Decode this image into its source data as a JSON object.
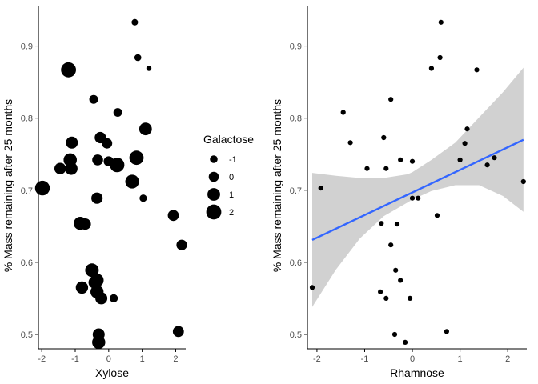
{
  "chart_data": [
    {
      "type": "scatter",
      "xlabel": "Xylose",
      "ylabel": "% Mass remaining after 25 months",
      "xlim": [
        -2.1,
        2.3
      ],
      "ylim": [
        0.48,
        0.955
      ],
      "xticks": [
        -2,
        -1,
        0,
        1,
        2
      ],
      "yticks": [
        0.5,
        0.6,
        0.7,
        0.8,
        0.9
      ],
      "grid": false,
      "size_variable": "Galactose",
      "points": [
        {
          "x": 0.78,
          "y": 0.933,
          "size": -1.5
        },
        {
          "x": 0.87,
          "y": 0.884,
          "size": -1.3
        },
        {
          "x": 1.2,
          "y": 0.869,
          "size": -2.0
        },
        {
          "x": -1.2,
          "y": 0.867,
          "size": 2.0
        },
        {
          "x": -0.45,
          "y": 0.826,
          "size": -0.5
        },
        {
          "x": 0.27,
          "y": 0.808,
          "size": -0.6
        },
        {
          "x": 1.1,
          "y": 0.785,
          "size": 1.0
        },
        {
          "x": -0.25,
          "y": 0.773,
          "size": 0.5
        },
        {
          "x": -1.1,
          "y": 0.766,
          "size": 0.8
        },
        {
          "x": -0.05,
          "y": 0.765,
          "size": 0.1
        },
        {
          "x": 0.83,
          "y": 0.745,
          "size": 1.7
        },
        {
          "x": -1.15,
          "y": 0.742,
          "size": 1.3
        },
        {
          "x": -0.33,
          "y": 0.742,
          "size": 0.3
        },
        {
          "x": 0.0,
          "y": 0.74,
          "size": 0.0
        },
        {
          "x": 0.25,
          "y": 0.735,
          "size": 1.8
        },
        {
          "x": -1.45,
          "y": 0.73,
          "size": 0.6
        },
        {
          "x": -1.12,
          "y": 0.73,
          "size": 1.0
        },
        {
          "x": 0.7,
          "y": 0.712,
          "size": 1.5
        },
        {
          "x": -1.98,
          "y": 0.703,
          "size": 1.9
        },
        {
          "x": -0.35,
          "y": 0.689,
          "size": 0.5
        },
        {
          "x": 1.03,
          "y": 0.689,
          "size": -1.1
        },
        {
          "x": 1.93,
          "y": 0.665,
          "size": 0.4
        },
        {
          "x": -0.85,
          "y": 0.654,
          "size": 1.2
        },
        {
          "x": -0.7,
          "y": 0.653,
          "size": 0.5
        },
        {
          "x": 2.18,
          "y": 0.624,
          "size": 0.2
        },
        {
          "x": -0.5,
          "y": 0.589,
          "size": 1.4
        },
        {
          "x": -0.35,
          "y": 0.575,
          "size": 1.3
        },
        {
          "x": -0.42,
          "y": 0.572,
          "size": 0.9
        },
        {
          "x": -0.8,
          "y": 0.565,
          "size": 0.9
        },
        {
          "x": -0.35,
          "y": 0.559,
          "size": 1.2
        },
        {
          "x": -0.22,
          "y": 0.55,
          "size": 0.8
        },
        {
          "x": 0.15,
          "y": 0.55,
          "size": -0.8
        },
        {
          "x": 2.08,
          "y": 0.504,
          "size": 0.4
        },
        {
          "x": -0.3,
          "y": 0.5,
          "size": 0.8
        },
        {
          "x": -0.3,
          "y": 0.489,
          "size": 1.2
        }
      ],
      "legend": {
        "title": "Galactose",
        "placement": "right",
        "entries": [
          {
            "label": "-1",
            "value": -1
          },
          {
            "label": "0",
            "value": 0
          },
          {
            "label": "1",
            "value": 1
          },
          {
            "label": "2",
            "value": 2
          }
        ]
      },
      "colors": {
        "points": "#000000",
        "axis": "#000000",
        "tick_label": "#4d4d4d"
      }
    },
    {
      "type": "scatter",
      "xlabel": "Rhamnose",
      "ylabel": "% Mass remaining after 25 months",
      "xlim": [
        -2.2,
        2.4
      ],
      "ylim": [
        0.48,
        0.955
      ],
      "xticks": [
        -2,
        -1,
        0,
        1,
        2
      ],
      "yticks": [
        0.5,
        0.6,
        0.7,
        0.8,
        0.9
      ],
      "grid": false,
      "points": [
        {
          "x": 0.6,
          "y": 0.933
        },
        {
          "x": 0.58,
          "y": 0.884
        },
        {
          "x": 0.4,
          "y": 0.869
        },
        {
          "x": 1.35,
          "y": 0.867
        },
        {
          "x": -0.45,
          "y": 0.826
        },
        {
          "x": -1.45,
          "y": 0.808
        },
        {
          "x": 1.15,
          "y": 0.785
        },
        {
          "x": -0.6,
          "y": 0.773
        },
        {
          "x": -1.3,
          "y": 0.766
        },
        {
          "x": 1.1,
          "y": 0.765
        },
        {
          "x": 1.72,
          "y": 0.745
        },
        {
          "x": -0.25,
          "y": 0.742
        },
        {
          "x": 1.0,
          "y": 0.742
        },
        {
          "x": 0.0,
          "y": 0.74
        },
        {
          "x": 1.57,
          "y": 0.735
        },
        {
          "x": -0.95,
          "y": 0.73
        },
        {
          "x": -0.55,
          "y": 0.73
        },
        {
          "x": 2.33,
          "y": 0.712
        },
        {
          "x": -1.92,
          "y": 0.703
        },
        {
          "x": 0.0,
          "y": 0.689
        },
        {
          "x": 0.12,
          "y": 0.689
        },
        {
          "x": 0.52,
          "y": 0.665
        },
        {
          "x": -0.65,
          "y": 0.654
        },
        {
          "x": -0.32,
          "y": 0.653
        },
        {
          "x": -0.45,
          "y": 0.624
        },
        {
          "x": -0.35,
          "y": 0.589
        },
        {
          "x": -0.25,
          "y": 0.575
        },
        {
          "x": -2.1,
          "y": 0.565
        },
        {
          "x": -0.67,
          "y": 0.559
        },
        {
          "x": -0.55,
          "y": 0.55
        },
        {
          "x": -0.05,
          "y": 0.55
        },
        {
          "x": 0.72,
          "y": 0.504
        },
        {
          "x": -0.37,
          "y": 0.5
        },
        {
          "x": -0.15,
          "y": 0.489
        }
      ],
      "trend": {
        "method": "linear",
        "x": [
          -2.1,
          2.33
        ],
        "y": [
          0.631,
          0.77
        ],
        "band_x": [
          -2.1,
          -1.6,
          -1.1,
          -0.6,
          -0.1,
          0.0,
          0.4,
          0.9,
          1.4,
          1.9,
          2.33
        ],
        "band_lower": [
          0.538,
          0.59,
          0.633,
          0.664,
          0.683,
          0.687,
          0.699,
          0.707,
          0.707,
          0.692,
          0.67
        ],
        "band_upper": [
          0.724,
          0.72,
          0.717,
          0.717,
          0.722,
          0.725,
          0.742,
          0.766,
          0.801,
          0.836,
          0.87
        ]
      },
      "colors": {
        "points": "#000000",
        "line": "#3366ff",
        "band": "#cccccc",
        "axis": "#000000",
        "tick_label": "#4d4d4d"
      }
    }
  ]
}
